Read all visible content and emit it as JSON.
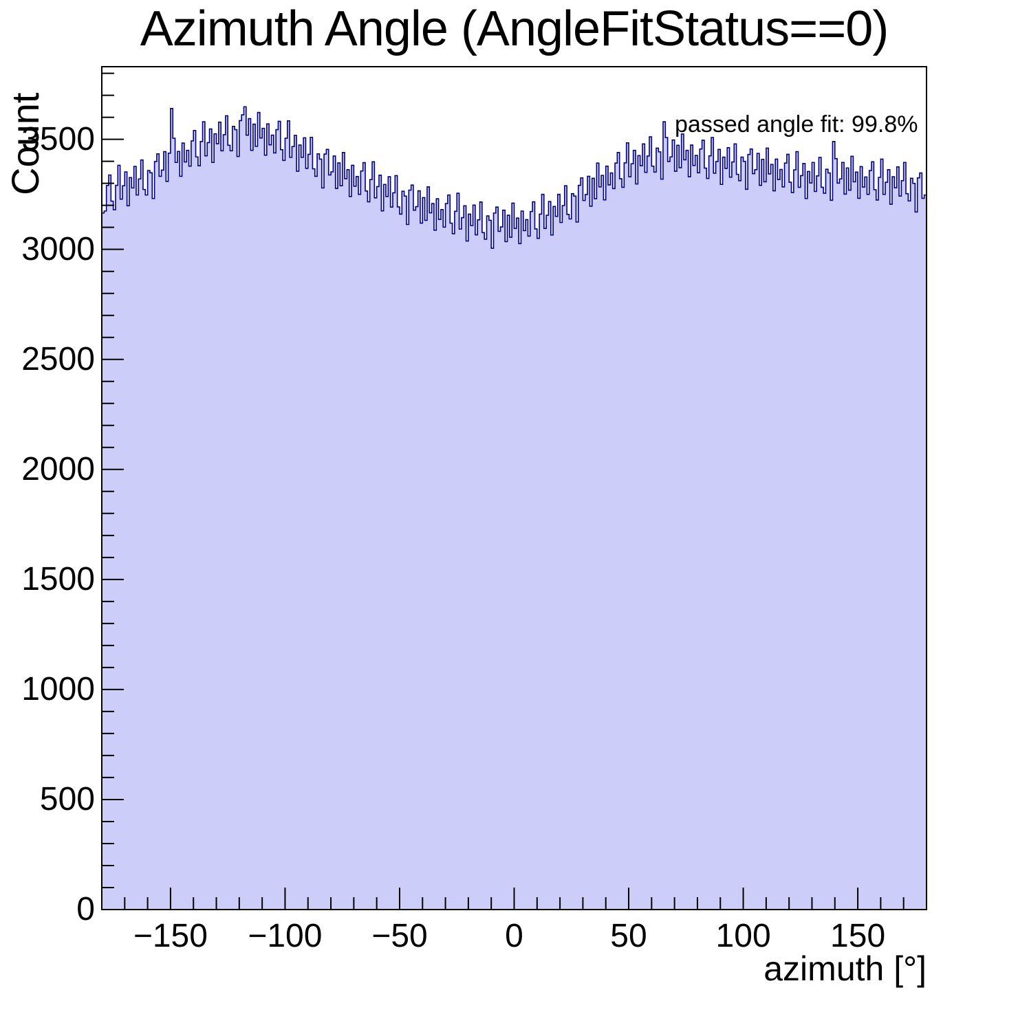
{
  "chart_data": {
    "type": "bar",
    "subtype": "histogram",
    "title": "Azimuth Angle (AngleFitStatus==0)",
    "xlabel": "azimuth [°]",
    "ylabel": "Count",
    "annotation": "passed angle fit: 99.8%",
    "xlim": [
      -180,
      180
    ],
    "ylim": [
      0,
      3830
    ],
    "grid": false,
    "legend": false,
    "bin_start": -180,
    "bin_width": 1,
    "n_bins": 360,
    "x_major_ticks": {
      "values": [
        -150,
        -100,
        -50,
        0,
        50,
        100,
        150
      ],
      "labels": [
        "−150",
        "−100",
        "−50",
        "0",
        "50",
        "100",
        "150"
      ]
    },
    "x_minor_tick_step": 10,
    "y_major_ticks": {
      "values": [
        0,
        500,
        1000,
        1500,
        2000,
        2500,
        3000,
        3500
      ],
      "labels": [
        "0",
        "500",
        "1000",
        "1500",
        "2000",
        "2500",
        "3000",
        "3500"
      ]
    },
    "y_minor_tick_step": 100,
    "colors": {
      "fill": "#cdcdfa",
      "line": "#000084",
      "axis": "#000000",
      "text": "#000000",
      "background": "#ffffff"
    },
    "values": [
      3165,
      3174,
      3290,
      3338,
      3219,
      3180,
      3291,
      3382,
      3228,
      3289,
      3352,
      3198,
      3326,
      3279,
      3377,
      3247,
      3320,
      3406,
      3272,
      3247,
      3358,
      3348,
      3231,
      3399,
      3434,
      3332,
      3360,
      3444,
      3309,
      3437,
      3640,
      3505,
      3395,
      3445,
      3332,
      3483,
      3397,
      3450,
      3378,
      3493,
      3540,
      3420,
      3380,
      3490,
      3580,
      3425,
      3485,
      3547,
      3395,
      3525,
      3480,
      3578,
      3448,
      3521,
      3607,
      3473,
      3448,
      3559,
      3544,
      3422,
      3585,
      3611,
      3648,
      3519,
      3594,
      3450,
      3569,
      3468,
      3622,
      3506,
      3550,
      3428,
      3570,
      3475,
      3519,
      3438,
      3544,
      3582,
      3453,
      3404,
      3505,
      3584,
      3418,
      3467,
      3518,
      3355,
      3474,
      3418,
      3507,
      3368,
      3432,
      3509,
      3366,
      3332,
      3434,
      3410,
      3279,
      3433,
      3454,
      3338,
      3352,
      3424,
      3277,
      3393,
      3289,
      3440,
      3321,
      3362,
      3240,
      3382,
      3287,
      3331,
      3250,
      3356,
      3394,
      3265,
      3216,
      3317,
      3398,
      3234,
      3285,
      3337,
      3175,
      3295,
      3240,
      3330,
      3192,
      3257,
      3335,
      3193,
      3160,
      3264,
      3242,
      3113,
      3269,
      3292,
      3178,
      3194,
      3266,
      3119,
      3235,
      3132,
      3284,
      3166,
      3208,
      3087,
      3230,
      3136,
      3181,
      3101,
      3208,
      3247,
      3119,
      3071,
      3173,
      3255,
      3092,
      3144,
      3198,
      3038,
      3160,
      3108,
      3201,
      3066,
      3134,
      3215,
      3076,
      3046,
      3152,
      3132,
      3005,
      3165,
      3192,
      3082,
      3102,
      3178,
      3035,
      3155,
      3055,
      3210,
      3095,
      3142,
      3026,
      3174,
      3085,
      3135,
      3060,
      3172,
      3216,
      3093,
      3050,
      3160,
      3250,
      3095,
      3155,
      3217,
      3065,
      3195,
      3150,
      3250,
      3122,
      3199,
      3289,
      3159,
      3138,
      3253,
      3242,
      3124,
      3291,
      3325,
      3222,
      3249,
      3332,
      3196,
      3323,
      3230,
      3392,
      3284,
      3336,
      3225,
      3378,
      3293,
      3347,
      3276,
      3392,
      3440,
      3321,
      3282,
      3393,
      3484,
      3330,
      3389,
      3450,
      3297,
      3426,
      3380,
      3479,
      3350,
      3424,
      3511,
      3378,
      3351,
      3460,
      3443,
      3319,
      3580,
      3508,
      3399,
      3420,
      3497,
      3355,
      3473,
      3371,
      3524,
      3407,
      3450,
      3330,
      3474,
      3381,
      3427,
      3348,
      3456,
      3496,
      3369,
      3322,
      3425,
      3508,
      3346,
      3399,
      3454,
      3295,
      3419,
      3368,
      3462,
      3328,
      3397,
      3479,
      3341,
      3312,
      3419,
      3400,
      3273,
      3431,
      3456,
      3344,
      3362,
      3436,
      3291,
      3409,
      3307,
      3460,
      3343,
      3386,
      3266,
      3410,
      3317,
      3363,
      3284,
      3392,
      3432,
      3305,
      3258,
      3361,
      3444,
      3282,
      3335,
      3390,
      3231,
      3354,
      3302,
      3395,
      3263,
      3334,
      3418,
      3282,
      3255,
      3364,
      3347,
      3223,
      3490,
      3412,
      3301,
      3320,
      3395,
      3251,
      3370,
      3269,
      3423,
      3307,
      3351,
      3232,
      3376,
      3283,
      3329,
      3250,
      3358,
      3398,
      3271,
      3224,
      3327,
      3410,
      3250,
      3305,
      3362,
      3205,
      3330,
      3280,
      3375,
      3242,
      3312,
      3395,
      3253,
      3220,
      3323,
      3300,
      3170,
      3325,
      3347,
      3232,
      3247
    ]
  }
}
